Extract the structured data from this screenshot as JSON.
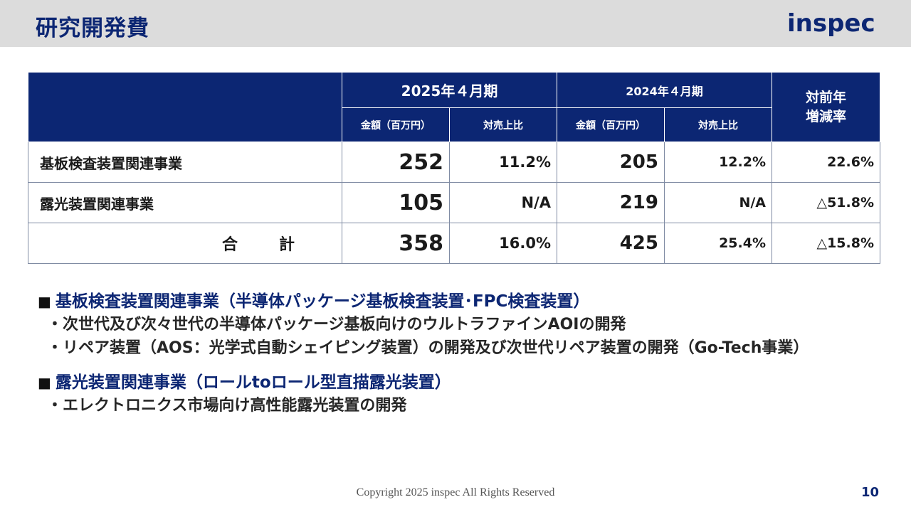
{
  "header": {
    "title": "研究開発費",
    "logo": "inspec"
  },
  "table": {
    "period_2025": "2025年４月期",
    "period_2024": "2024年４月期",
    "yoy_line1": "対前年",
    "yoy_line2": "増減率",
    "amount_label": "金額（百万円）",
    "ratio_label": "対売上比",
    "rows": [
      {
        "label": "基板検査装置関連事業",
        "amt_2025": "252",
        "ratio_2025": "11.2%",
        "amt_2024": "205",
        "ratio_2024": "12.2%",
        "yoy": "22.6%"
      },
      {
        "label": "露光装置関連事業",
        "amt_2025": "105",
        "ratio_2025": "N/A",
        "amt_2024": "219",
        "ratio_2024": "N/A",
        "yoy": "△51.8%"
      },
      {
        "label": "合　計",
        "amt_2025": "358",
        "ratio_2025": "16.0%",
        "amt_2024": "425",
        "ratio_2024": "25.4%",
        "yoy": "△15.8%"
      }
    ]
  },
  "sections": [
    {
      "marker": "■",
      "heading": "基板検査装置関連事業（半導体パッケージ基板検査装置･FPC検査装置）",
      "bullets": [
        "・次世代及び次々世代の半導体パッケージ基板向けのウルトラファインAOIの開発",
        "・リペア装置（AOS：光学式自動シェイピング装置）の開発及び次世代リペア装置の開発（Go-Tech事業）"
      ]
    },
    {
      "marker": "■",
      "heading": "露光装置関連事業（ロールtoロール型直描露光装置）",
      "bullets": [
        "・エレクトロニクス市場向け高性能露光装置の開発"
      ]
    }
  ],
  "footer": {
    "copyright": "Copyright 2025 inspec All Rights Reserved",
    "page_number": "10"
  }
}
